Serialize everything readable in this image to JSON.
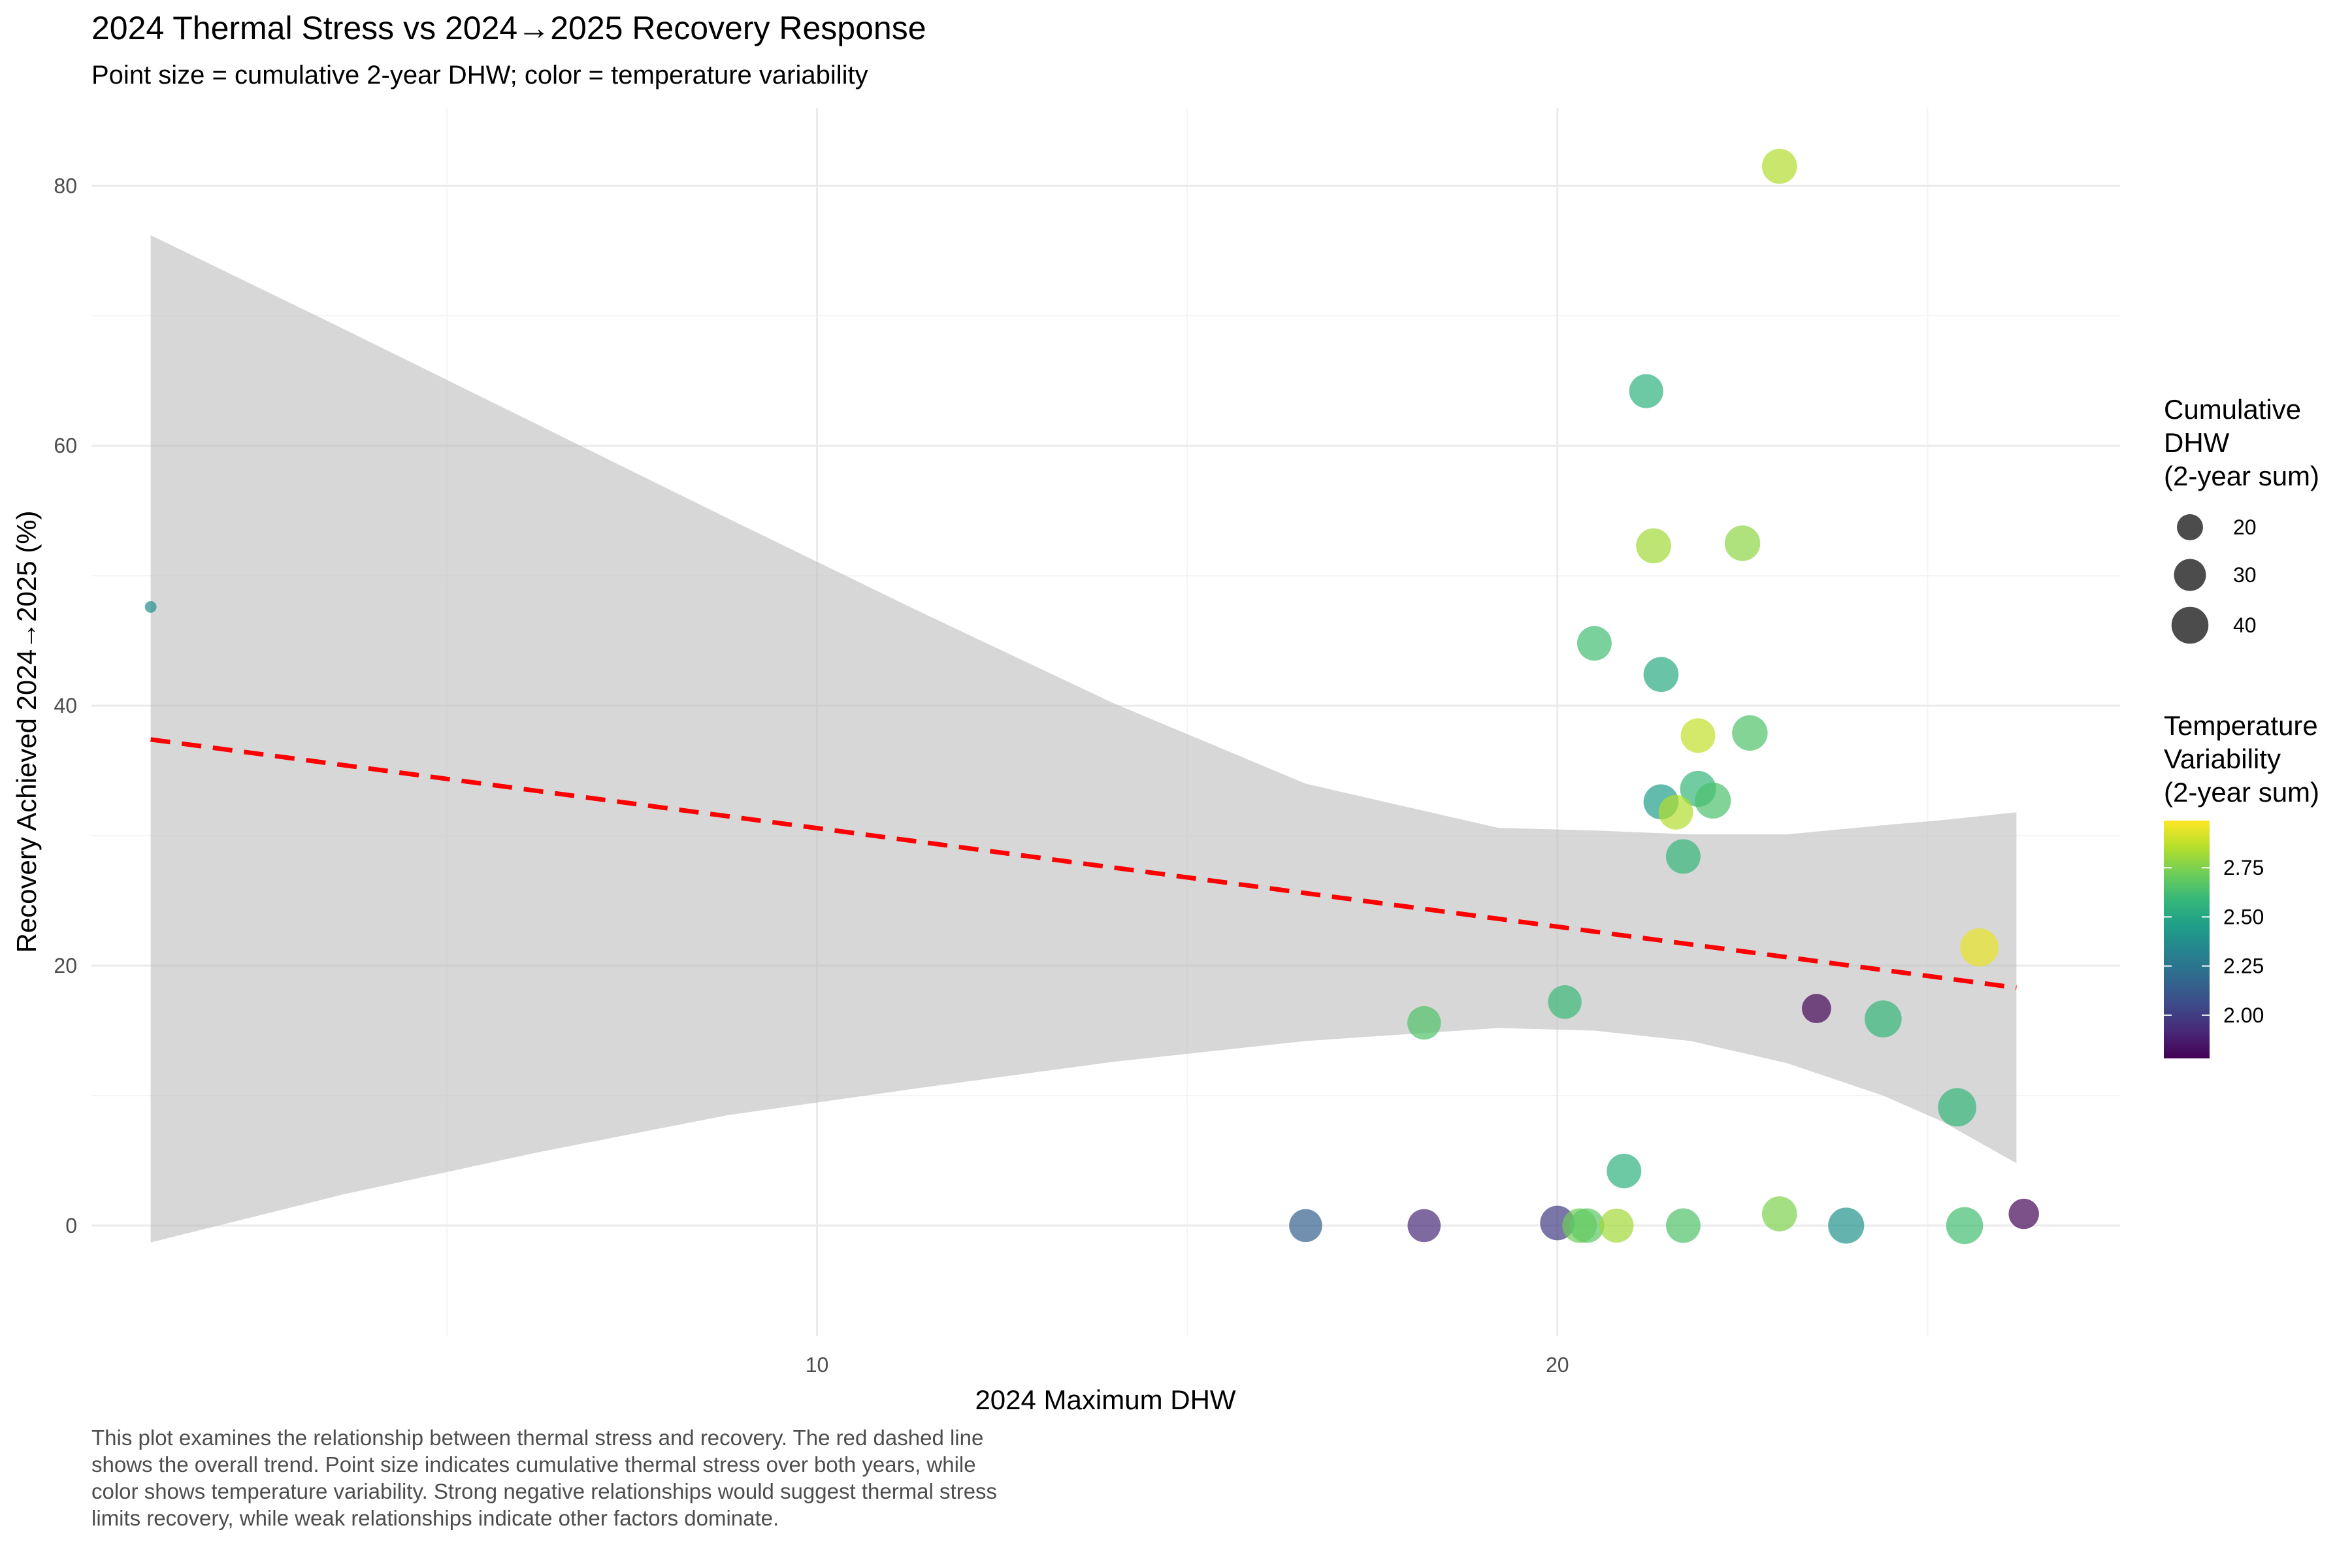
{
  "chart_data": {
    "type": "scatter",
    "title": "2024 Thermal Stress vs 2024→2025 Recovery Response",
    "subtitle": "Point size = cumulative 2-year DHW; color = temperature variability",
    "xlabel": "2024 Maximum DHW",
    "ylabel": "Recovery Achieved 2024→2025 (%)",
    "xlim": [
      0.2,
      27.6
    ],
    "ylim": [
      -8.5,
      86
    ],
    "x_ticks": [
      10,
      20
    ],
    "y_ticks": [
      0,
      20,
      40,
      60,
      80
    ],
    "grid": true,
    "legend_position": "right",
    "trend": {
      "style": "dashed",
      "color": "#ff0000",
      "x": [
        1.0,
        26.2
      ],
      "y": [
        37.4,
        18.3
      ]
    },
    "confidence_band": {
      "color": "#bebebe",
      "x": [
        1.0,
        3.6,
        6.2,
        8.8,
        11.4,
        14.0,
        16.6,
        19.2,
        20.5,
        21.8,
        23.1,
        24.4,
        25.2,
        26.2
      ],
      "upper": [
        76.2,
        69.0,
        61.7,
        54.4,
        47.2,
        40.2,
        34.0,
        30.6,
        30.4,
        30.1,
        30.1,
        30.8,
        31.2,
        31.8
      ],
      "lower": [
        -1.3,
        2.4,
        5.6,
        8.5,
        10.6,
        12.6,
        14.2,
        15.2,
        15.0,
        14.2,
        12.5,
        10.0,
        8.0,
        4.8
      ]
    },
    "series": [
      {
        "points": [
          {
            "x": 1.0,
            "y": 47.6,
            "dhw": 4.0,
            "variability": 2.38
          },
          {
            "x": 21.2,
            "y": 64.2,
            "dhw": 34.0,
            "variability": 2.55
          },
          {
            "x": 23.0,
            "y": 81.5,
            "dhw": 36.0,
            "variability": 2.85
          },
          {
            "x": 21.3,
            "y": 52.3,
            "dhw": 36.0,
            "variability": 2.82
          },
          {
            "x": 22.5,
            "y": 52.5,
            "dhw": 37.0,
            "variability": 2.78
          },
          {
            "x": 20.5,
            "y": 44.8,
            "dhw": 35.0,
            "variability": 2.62
          },
          {
            "x": 21.4,
            "y": 42.4,
            "dhw": 36.0,
            "variability": 2.52
          },
          {
            "x": 21.9,
            "y": 37.7,
            "dhw": 35.0,
            "variability": 2.88
          },
          {
            "x": 22.6,
            "y": 37.9,
            "dhw": 37.0,
            "variability": 2.65
          },
          {
            "x": 21.9,
            "y": 33.6,
            "dhw": 38.0,
            "variability": 2.58
          },
          {
            "x": 22.1,
            "y": 32.7,
            "dhw": 38.0,
            "variability": 2.64
          },
          {
            "x": 21.4,
            "y": 32.6,
            "dhw": 36.0,
            "variability": 2.45
          },
          {
            "x": 21.6,
            "y": 31.8,
            "dhw": 35.0,
            "variability": 2.85
          },
          {
            "x": 21.7,
            "y": 28.4,
            "dhw": 35.0,
            "variability": 2.58
          },
          {
            "x": 25.7,
            "y": 21.4,
            "dhw": 43.0,
            "variability": 2.95
          },
          {
            "x": 20.1,
            "y": 17.2,
            "dhw": 33.0,
            "variability": 2.6
          },
          {
            "x": 23.5,
            "y": 16.7,
            "dhw": 25.0,
            "variability": 1.8
          },
          {
            "x": 24.4,
            "y": 15.9,
            "dhw": 40.0,
            "variability": 2.58
          },
          {
            "x": 18.2,
            "y": 15.6,
            "dhw": 33.0,
            "variability": 2.65
          },
          {
            "x": 25.4,
            "y": 9.1,
            "dhw": 43.0,
            "variability": 2.58
          },
          {
            "x": 20.9,
            "y": 4.2,
            "dhw": 35.0,
            "variability": 2.55
          },
          {
            "x": 16.6,
            "y": 0.0,
            "dhw": 32.0,
            "variability": 2.15
          },
          {
            "x": 18.2,
            "y": 0.0,
            "dhw": 32.0,
            "variability": 1.92
          },
          {
            "x": 20.0,
            "y": 0.2,
            "dhw": 35.0,
            "variability": 2.0
          },
          {
            "x": 20.3,
            "y": 0.0,
            "dhw": 35.0,
            "variability": 2.72
          },
          {
            "x": 20.4,
            "y": 0.0,
            "dhw": 35.0,
            "variability": 2.68
          },
          {
            "x": 20.8,
            "y": 0.0,
            "dhw": 34.0,
            "variability": 2.82
          },
          {
            "x": 21.7,
            "y": 0.0,
            "dhw": 35.0,
            "variability": 2.65
          },
          {
            "x": 23.0,
            "y": 0.9,
            "dhw": 36.0,
            "variability": 2.75
          },
          {
            "x": 23.9,
            "y": 0.0,
            "dhw": 38.0,
            "variability": 2.4
          },
          {
            "x": 25.5,
            "y": 0.0,
            "dhw": 40.0,
            "variability": 2.62
          },
          {
            "x": 26.3,
            "y": 0.9,
            "dhw": 27.0,
            "variability": 1.8
          }
        ]
      }
    ],
    "size_legend": {
      "title_lines": [
        "Cumulative",
        "DHW",
        "(2-year sum)"
      ],
      "entries": [
        {
          "label": "20",
          "value": 20
        },
        {
          "label": "30",
          "value": 30
        },
        {
          "label": "40",
          "value": 40
        }
      ]
    },
    "color_legend": {
      "title_lines": [
        "Temperature",
        "Variability",
        "(2-year sum)"
      ],
      "range": [
        1.78,
        2.99
      ],
      "ticks": [
        {
          "label": "2.00",
          "value": 2.0
        },
        {
          "label": "2.25",
          "value": 2.25
        },
        {
          "label": "2.50",
          "value": 2.5
        },
        {
          "label": "2.75",
          "value": 2.75
        }
      ],
      "palette": [
        "#440154",
        "#482878",
        "#3e4989",
        "#31688e",
        "#26828e",
        "#1f9e89",
        "#35b779",
        "#6ece58",
        "#b5de2b",
        "#fde725"
      ]
    }
  },
  "caption": "This plot examines the relationship between thermal stress and recovery. The red dashed line shows the overall trend. Point size indicates cumulative thermal stress over both years, while color shows temperature variability. Strong negative relationships would suggest thermal stress limits recovery, while weak relationships indicate other factors dominate."
}
